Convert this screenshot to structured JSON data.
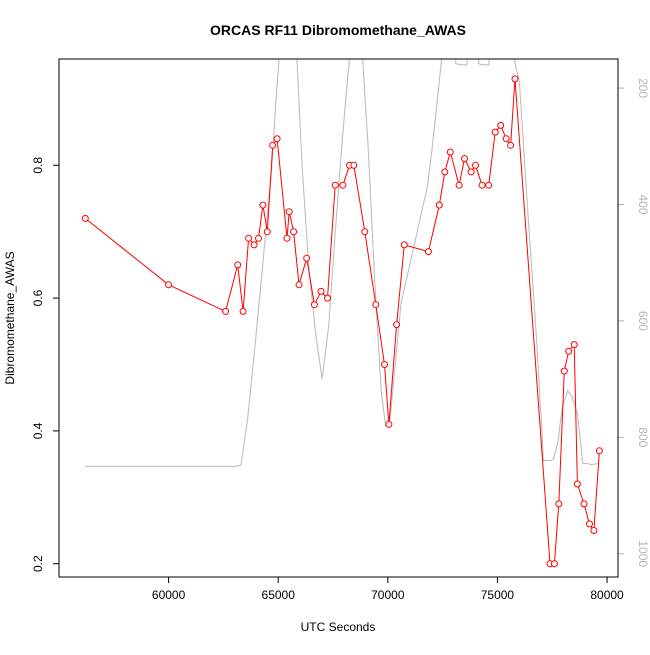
{
  "chart_data": {
    "type": "line",
    "title": "ORCAS RF11 Dibromomethane_AWAS",
    "xlabel": "UTC Seconds",
    "ylabel": "Dibromomethane_AWAS",
    "xlim": [
      55000,
      80500
    ],
    "ylim": [
      0.18,
      0.96
    ],
    "x_ticks": [
      60000,
      65000,
      70000,
      75000,
      80000
    ],
    "x_tick_labels": [
      "60000",
      "65000",
      "70000",
      "75000",
      "80000"
    ],
    "y_ticks": [
      0.2,
      0.4,
      0.6,
      0.8
    ],
    "y_tick_labels": [
      "0.2",
      "0.4",
      "0.6",
      "0.8"
    ],
    "y2_ticks": [
      200,
      400,
      600,
      800,
      1000
    ],
    "y2_tick_labels": [
      "200",
      "400",
      "600",
      "800",
      "1000"
    ],
    "y2lim": [
      1040,
      150
    ],
    "grid": false,
    "legend": "none",
    "colors": {
      "primary": "#ff0000",
      "secondary": "#bebebe",
      "axis": "#000000"
    },
    "series": [
      {
        "color": "#ff0000",
        "marker": "open-circle",
        "x": [
          56200,
          60000,
          62600,
          63150,
          63400,
          63650,
          63900,
          64100,
          64300,
          64500,
          64750,
          64950,
          65400,
          65500,
          65700,
          65950,
          66300,
          66650,
          66950,
          67250,
          67600,
          67950,
          68250,
          68450,
          68950,
          69450,
          69850,
          70050,
          70400,
          70750,
          71850,
          72350,
          72600,
          72850,
          73250,
          73500,
          73800,
          74000,
          74300,
          74600,
          74900,
          75150,
          75400,
          75600,
          75800,
          77400,
          77600,
          77800,
          78050,
          78250,
          78500,
          78650,
          78950,
          79200,
          79400,
          79650
        ],
        "values": [
          0.72,
          0.62,
          0.58,
          0.65,
          0.58,
          0.69,
          0.68,
          0.69,
          0.74,
          0.7,
          0.83,
          0.84,
          0.69,
          0.73,
          0.7,
          0.62,
          0.66,
          0.59,
          0.61,
          0.6,
          0.77,
          0.77,
          0.8,
          0.8,
          0.7,
          0.59,
          0.5,
          0.41,
          0.56,
          0.68,
          0.67,
          0.74,
          0.79,
          0.82,
          0.77,
          0.81,
          0.79,
          0.8,
          0.77,
          0.77,
          0.85,
          0.86,
          0.84,
          0.83,
          0.93,
          0.2,
          0.2,
          0.29,
          0.49,
          0.52,
          0.53,
          0.32,
          0.29,
          0.26,
          0.25,
          0.37
        ]
      },
      {
        "color": "#bebebe",
        "marker": "none",
        "axis": "right",
        "x": [
          56200,
          63000,
          63300,
          63600,
          63950,
          64300,
          64700,
          64900,
          65100,
          65450,
          65800,
          66100,
          66400,
          66700,
          67000,
          67300,
          67600,
          67900,
          68100,
          68300,
          68500,
          68800,
          69100,
          69400,
          69700,
          69900,
          70100,
          70300,
          70600,
          70900,
          71200,
          71500,
          71800,
          72000,
          72200,
          72400,
          72600,
          72800,
          73050,
          73100,
          73300,
          73600,
          73800,
          74050,
          74150,
          74300,
          74600,
          74850,
          75100,
          75400,
          75700,
          76000,
          76400,
          76800,
          77100,
          77400,
          77550,
          77750,
          77950,
          78200,
          78400,
          78650,
          78900,
          79100,
          79300,
          79600
        ],
        "values": [
          850,
          850,
          848,
          770,
          640,
          500,
          340,
          220,
          120,
          100,
          110,
          340,
          510,
          620,
          700,
          610,
          450,
          300,
          210,
          130,
          100,
          120,
          300,
          530,
          720,
          780,
          770,
          690,
          570,
          520,
          470,
          420,
          370,
          310,
          240,
          170,
          100,
          80,
          80,
          158,
          160,
          160,
          80,
          80,
          158,
          160,
          160,
          80,
          90,
          120,
          140,
          190,
          420,
          640,
          840,
          840,
          838,
          810,
          750,
          720,
          730,
          760,
          845,
          845,
          847,
          845
        ]
      }
    ]
  }
}
